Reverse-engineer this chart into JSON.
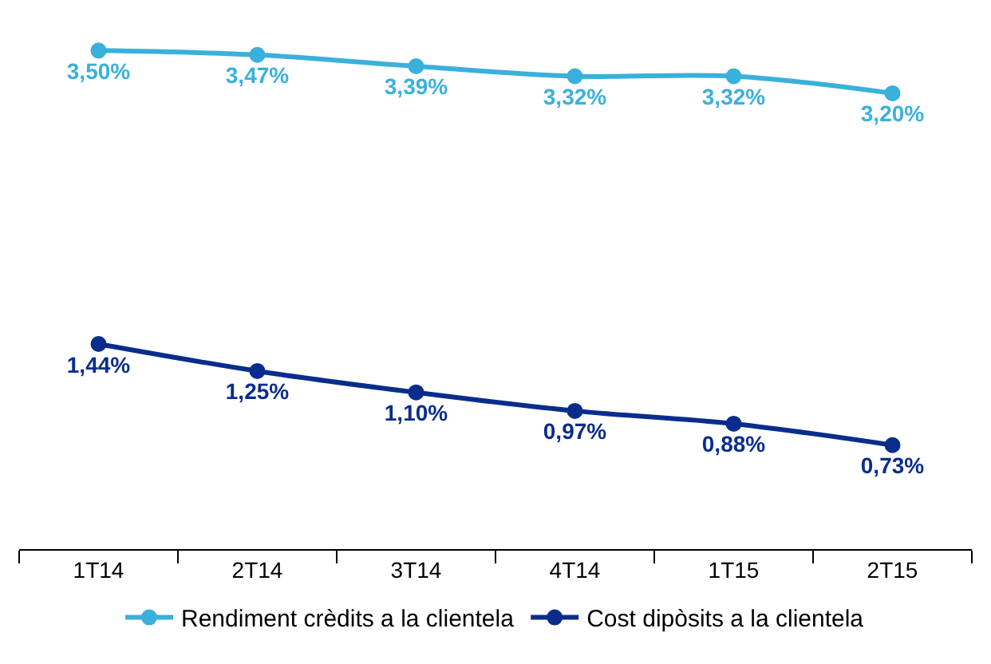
{
  "chart_data": {
    "type": "line",
    "categories": [
      "1T14",
      "2T14",
      "3T14",
      "4T14",
      "1T15",
      "2T15"
    ],
    "marker": "circle",
    "line_style": "solid",
    "legend": "bottom",
    "series": [
      {
        "name": "Rendiment crèdits a la clientela",
        "color": "#3ab0dc",
        "values": [
          3.5,
          3.47,
          3.39,
          3.32,
          3.32,
          3.2
        ],
        "value_labels": [
          "3,50%",
          "3,47%",
          "3,39%",
          "3,32%",
          "3,32%",
          "3,20%"
        ]
      },
      {
        "name": "Cost dipòsits a la clientela",
        "color": "#0a2d8c",
        "values": [
          1.44,
          1.25,
          1.1,
          0.97,
          0.88,
          0.73
        ],
        "value_labels": [
          "1,44%",
          "1,25%",
          "1,10%",
          "0,97%",
          "0,88%",
          "0,73%"
        ]
      }
    ]
  }
}
